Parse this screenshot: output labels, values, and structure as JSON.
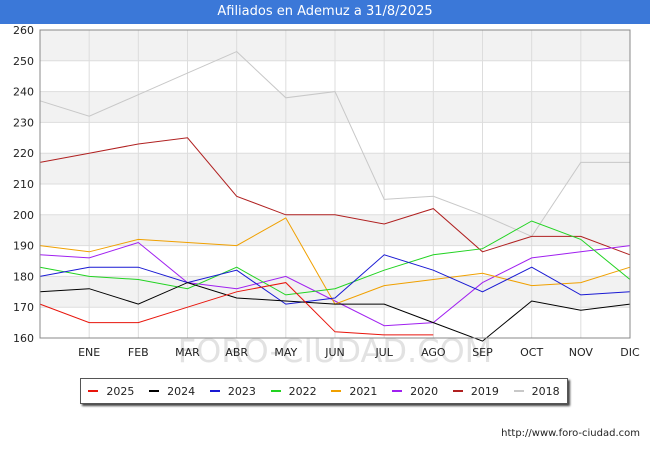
{
  "title": "Afiliados en Ademuz a 31/8/2025",
  "source": "http://www.foro-ciudad.com",
  "watermark": "FORO-CIUDAD.COM",
  "chart_data": {
    "type": "line",
    "title": "Afiliados en Ademuz a 31/8/2025",
    "x_tick_labels": [
      "",
      "ENE",
      "FEB",
      "MAR",
      "ABR",
      "MAY",
      "JUN",
      "JUL",
      "AGO",
      "SEP",
      "OCT",
      "NOV",
      "DIC"
    ],
    "yticks": [
      160,
      170,
      180,
      190,
      200,
      210,
      220,
      230,
      240,
      250,
      260
    ],
    "ylim": [
      160,
      260
    ],
    "grid": true,
    "legend_position": "bottom",
    "series": [
      {
        "name": "2025",
        "color": "#e8150c",
        "values": [
          171,
          165,
          165,
          170,
          175,
          178,
          162,
          161,
          161
        ]
      },
      {
        "name": "2024",
        "color": "#000000",
        "values": [
          175,
          176,
          171,
          178,
          173,
          172,
          171,
          171,
          165,
          159,
          172,
          169,
          171
        ]
      },
      {
        "name": "2023",
        "color": "#1919d3",
        "values": [
          180,
          183,
          183,
          178,
          182,
          171,
          173,
          187,
          182,
          175,
          183,
          174,
          175
        ]
      },
      {
        "name": "2022",
        "color": "#22d322",
        "values": [
          183,
          180,
          179,
          176,
          183,
          174,
          176,
          182,
          187,
          189,
          198,
          192,
          179
        ]
      },
      {
        "name": "2021",
        "color": "#f0a000",
        "values": [
          190,
          188,
          192,
          191,
          190,
          199,
          171,
          177,
          179,
          181,
          177,
          178,
          183
        ]
      },
      {
        "name": "2020",
        "color": "#a020f0",
        "values": [
          187,
          186,
          191,
          178,
          176,
          180,
          172,
          164,
          165,
          178,
          186,
          188,
          190
        ]
      },
      {
        "name": "2019",
        "color": "#b02020",
        "values": [
          217,
          220,
          223,
          225,
          206,
          200,
          200,
          197,
          202,
          188,
          193,
          193,
          187
        ]
      },
      {
        "name": "2018",
        "color": "#c8c8c8",
        "values": [
          237,
          232,
          239,
          246,
          253,
          238,
          240,
          205,
          206,
          200,
          193,
          217,
          217
        ]
      }
    ]
  }
}
